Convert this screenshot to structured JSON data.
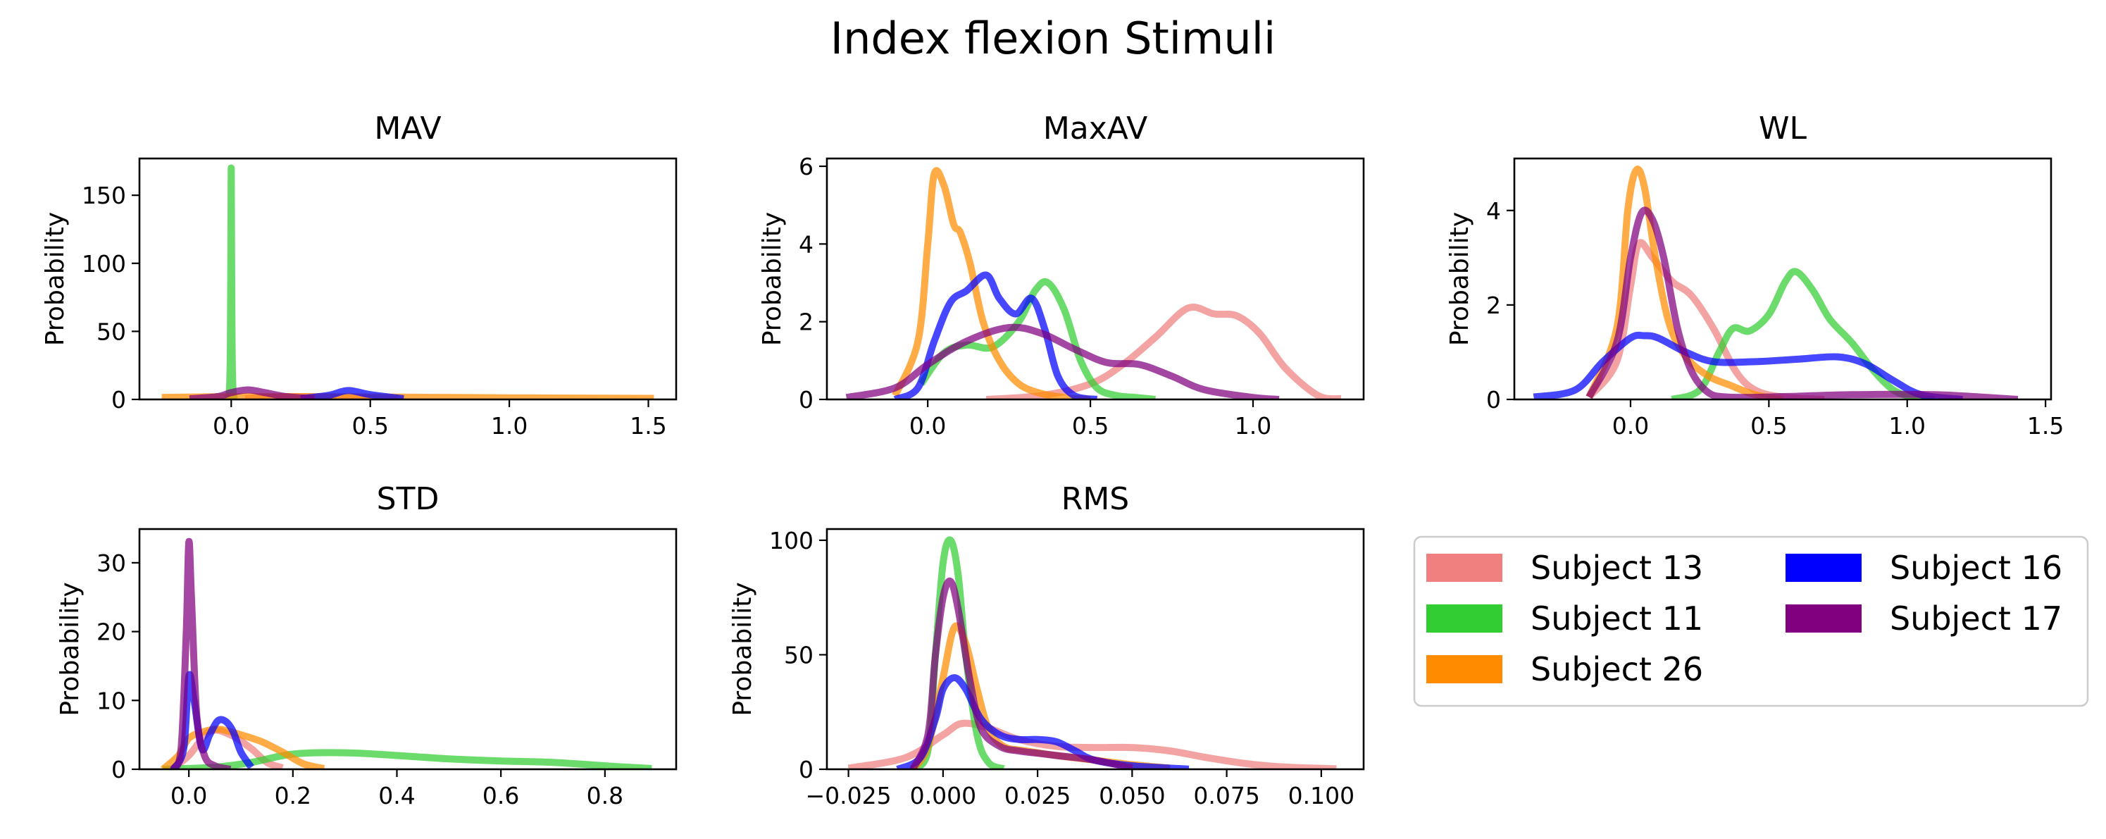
{
  "figure_title": "Index flexion Stimuli",
  "colors": {
    "Subject 13": "#f08080",
    "Subject 11": "#32cd32",
    "Subject 26": "#ff8c00",
    "Subject 16": "#0000ff",
    "Subject 17": "#800080"
  },
  "legend": {
    "entries": [
      "Subject 13",
      "Subject 11",
      "Subject 26",
      "Subject 16",
      "Subject 17"
    ],
    "columns": 2,
    "placement": "lower-right (empty 6th panel)"
  },
  "chart_data": [
    {
      "type": "line",
      "title": "MAV",
      "ylabel": "Probability",
      "xlabel": "",
      "xlim": [
        -0.33,
        1.6
      ],
      "ylim": [
        0,
        177
      ],
      "xticks": [
        0.0,
        0.5,
        1.0,
        1.5
      ],
      "xtick_labels": [
        "0.0",
        "0.5",
        "1.0",
        "1.5"
      ],
      "yticks": [
        0,
        50,
        100,
        150
      ],
      "ytick_labels": [
        "0",
        "50",
        "100",
        "150"
      ],
      "series": [
        {
          "name": "Subject 13",
          "x": [
            0.05,
            0.2,
            0.4,
            0.6
          ],
          "y": [
            0.5,
            2.0,
            1.5,
            0.5
          ]
        },
        {
          "name": "Subject 11",
          "x": [
            -0.02,
            -0.01,
            -0.006,
            -0.003,
            -0.001,
            0,
            0.001,
            0.003,
            0.006,
            0.01,
            0.02
          ],
          "y": [
            0,
            1,
            8,
            40,
            120,
            170,
            120,
            40,
            8,
            1,
            0
          ]
        },
        {
          "name": "Subject 26",
          "x": [
            -0.25,
            0,
            0.25,
            0.5,
            0.75,
            1.0,
            1.25,
            1.52
          ],
          "y": [
            1.5,
            2.0,
            2.0,
            1.8,
            1.5,
            1.2,
            1.0,
            0.8
          ]
        },
        {
          "name": "Subject 16",
          "x": [
            0.25,
            0.35,
            0.42,
            0.5,
            0.62
          ],
          "y": [
            0.5,
            3.0,
            6.5,
            3.5,
            0.5
          ]
        },
        {
          "name": "Subject 17",
          "x": [
            -0.15,
            -0.05,
            0.0,
            0.06,
            0.12,
            0.2,
            0.3
          ],
          "y": [
            0.5,
            2.0,
            5.0,
            7.0,
            5.0,
            2.0,
            0.5
          ]
        }
      ]
    },
    {
      "type": "line",
      "title": "MaxAV",
      "ylabel": "Probability",
      "xlabel": "",
      "xlim": [
        -0.31,
        1.34
      ],
      "ylim": [
        0,
        6.2
      ],
      "xticks": [
        0.0,
        0.5,
        1.0
      ],
      "xtick_labels": [
        "0.0",
        "0.5",
        "1.0"
      ],
      "yticks": [
        0,
        2,
        4,
        6
      ],
      "ytick_labels": [
        "0",
        "2",
        "4",
        "6"
      ],
      "series": [
        {
          "name": "Subject 13",
          "x": [
            0.18,
            0.35,
            0.5,
            0.6,
            0.7,
            0.8,
            0.88,
            0.95,
            1.02,
            1.1,
            1.2,
            1.27
          ],
          "y": [
            0.0,
            0.1,
            0.4,
            0.9,
            1.6,
            2.35,
            2.2,
            2.15,
            1.7,
            0.8,
            0.1,
            0.02
          ]
        },
        {
          "name": "Subject 11",
          "x": [
            -0.02,
            0.05,
            0.12,
            0.2,
            0.28,
            0.33,
            0.37,
            0.42,
            0.47,
            0.52,
            0.58,
            0.64,
            0.7
          ],
          "y": [
            0.4,
            1.2,
            1.4,
            1.35,
            2.0,
            2.8,
            3.0,
            2.3,
            1.0,
            0.3,
            0.1,
            0.05,
            0.0
          ]
        },
        {
          "name": "Subject 26",
          "x": [
            -0.1,
            -0.03,
            0.0,
            0.02,
            0.05,
            0.08,
            0.1,
            0.13,
            0.17,
            0.22,
            0.28,
            0.35,
            0.42,
            0.5
          ],
          "y": [
            0.1,
            1.5,
            4.0,
            5.8,
            5.5,
            4.5,
            4.3,
            3.5,
            2.0,
            1.0,
            0.4,
            0.15,
            0.05,
            0.0
          ]
        },
        {
          "name": "Subject 16",
          "x": [
            -0.1,
            -0.03,
            0.02,
            0.07,
            0.12,
            0.18,
            0.22,
            0.27,
            0.32,
            0.36,
            0.4,
            0.45,
            0.52
          ],
          "y": [
            0.0,
            0.3,
            1.5,
            2.5,
            2.8,
            3.2,
            2.6,
            2.2,
            2.6,
            1.8,
            0.6,
            0.1,
            0.0
          ]
        },
        {
          "name": "Subject 17",
          "x": [
            -0.25,
            -0.1,
            0.0,
            0.12,
            0.25,
            0.35,
            0.45,
            0.55,
            0.65,
            0.75,
            0.85,
            1.0,
            1.08
          ],
          "y": [
            0.05,
            0.3,
            0.9,
            1.5,
            1.85,
            1.7,
            1.3,
            0.95,
            0.9,
            0.6,
            0.25,
            0.05,
            0.0
          ]
        }
      ]
    },
    {
      "type": "line",
      "title": "WL",
      "ylabel": "Probability",
      "xlabel": "",
      "xlim": [
        -0.42,
        1.52
      ],
      "ylim": [
        0,
        5.1
      ],
      "xticks": [
        0.0,
        0.5,
        1.0,
        1.5
      ],
      "xtick_labels": [
        "0.0",
        "0.5",
        "1.0",
        "1.5"
      ],
      "yticks": [
        0,
        2,
        4
      ],
      "ytick_labels": [
        "0",
        "2",
        "4"
      ],
      "series": [
        {
          "name": "Subject 13",
          "x": [
            -0.15,
            -0.05,
            0.0,
            0.03,
            0.08,
            0.15,
            0.22,
            0.3,
            0.38,
            0.45,
            0.55,
            0.7
          ],
          "y": [
            0.05,
            0.8,
            2.4,
            3.3,
            3.0,
            2.5,
            2.2,
            1.5,
            0.6,
            0.2,
            0.05,
            0.0
          ]
        },
        {
          "name": "Subject 11",
          "x": [
            0.15,
            0.25,
            0.32,
            0.37,
            0.43,
            0.5,
            0.56,
            0.6,
            0.66,
            0.72,
            0.8,
            0.88,
            0.95,
            1.02,
            1.1
          ],
          "y": [
            0.0,
            0.2,
            1.0,
            1.5,
            1.45,
            1.8,
            2.5,
            2.7,
            2.3,
            1.7,
            1.2,
            0.6,
            0.2,
            0.05,
            0.0
          ]
        },
        {
          "name": "Subject 26",
          "x": [
            -0.15,
            -0.05,
            -0.01,
            0.02,
            0.05,
            0.09,
            0.14,
            0.2,
            0.28,
            0.36,
            0.45,
            0.55
          ],
          "y": [
            0.05,
            1.5,
            4.0,
            4.85,
            4.5,
            3.0,
            1.6,
            0.9,
            0.5,
            0.3,
            0.1,
            0.0
          ]
        },
        {
          "name": "Subject 16",
          "x": [
            -0.35,
            -0.2,
            -0.1,
            0.0,
            0.05,
            0.1,
            0.2,
            0.3,
            0.45,
            0.6,
            0.75,
            0.85,
            0.95,
            1.05,
            1.2
          ],
          "y": [
            0.05,
            0.2,
            0.8,
            1.3,
            1.35,
            1.3,
            1.0,
            0.8,
            0.8,
            0.85,
            0.9,
            0.75,
            0.4,
            0.1,
            0.0
          ]
        },
        {
          "name": "Subject 17",
          "x": [
            -0.15,
            -0.05,
            0.0,
            0.04,
            0.08,
            0.12,
            0.17,
            0.22,
            0.28,
            0.35,
            0.5,
            0.8,
            1.1,
            1.4
          ],
          "y": [
            0.05,
            1.2,
            3.0,
            3.95,
            3.8,
            3.0,
            1.5,
            0.6,
            0.15,
            0.05,
            0.05,
            0.1,
            0.1,
            0.0
          ]
        }
      ]
    },
    {
      "type": "line",
      "title": "STD",
      "ylabel": "Probability",
      "xlabel": "",
      "xlim": [
        -0.095,
        0.937
      ],
      "ylim": [
        0,
        34.9
      ],
      "xticks": [
        0.0,
        0.2,
        0.4,
        0.6,
        0.8
      ],
      "xtick_labels": [
        "0.0",
        "0.2",
        "0.4",
        "0.6",
        "0.8"
      ],
      "yticks": [
        0,
        10,
        20,
        30
      ],
      "ytick_labels": [
        "0",
        "10",
        "20",
        "30"
      ],
      "series": [
        {
          "name": "Subject 13",
          "x": [
            -0.03,
            0.0,
            0.04,
            0.08,
            0.12,
            0.15,
            0.18
          ],
          "y": [
            0.2,
            2.0,
            5.5,
            5.0,
            3.0,
            1.0,
            0.2
          ]
        },
        {
          "name": "Subject 11",
          "x": [
            -0.05,
            0.05,
            0.12,
            0.2,
            0.3,
            0.4,
            0.5,
            0.6,
            0.7,
            0.8,
            0.89
          ],
          "y": [
            0.0,
            0.3,
            1.0,
            2.2,
            2.4,
            2.0,
            1.5,
            1.2,
            1.0,
            0.5,
            0.1
          ]
        },
        {
          "name": "Subject 26",
          "x": [
            -0.05,
            -0.02,
            0.0,
            0.03,
            0.06,
            0.1,
            0.14,
            0.18,
            0.22,
            0.26
          ],
          "y": [
            0.0,
            2.0,
            4.5,
            5.5,
            5.8,
            5.0,
            4.0,
            2.5,
            0.8,
            0.1
          ]
        },
        {
          "name": "Subject 16",
          "x": [
            -0.03,
            -0.01,
            0.0,
            0.01,
            0.025,
            0.04,
            0.055,
            0.07,
            0.085,
            0.1,
            0.12
          ],
          "y": [
            0.0,
            3.0,
            13.5,
            10.0,
            3.0,
            5.0,
            7.0,
            7.0,
            5.5,
            2.5,
            0.3
          ]
        },
        {
          "name": "Subject 17",
          "x": [
            -0.03,
            -0.015,
            -0.005,
            0.0,
            0.005,
            0.015,
            0.03,
            0.05,
            0.08
          ],
          "y": [
            0.0,
            3.0,
            20.0,
            33.0,
            25.0,
            8.0,
            2.0,
            0.5,
            0.0
          ]
        }
      ]
    },
    {
      "type": "line",
      "title": "RMS",
      "ylabel": "Probability",
      "xlabel": "",
      "xlim": [
        -0.0307,
        0.1112
      ],
      "ylim": [
        0,
        104.9
      ],
      "xticks": [
        -0.025,
        0.0,
        0.025,
        0.05,
        0.075,
        0.1
      ],
      "xtick_labels": [
        "−0.025",
        "0.000",
        "0.025",
        "0.050",
        "0.075",
        "0.100"
      ],
      "yticks": [
        0,
        50,
        100
      ],
      "ytick_labels": [
        "0",
        "50",
        "100"
      ],
      "series": [
        {
          "name": "Subject 13",
          "x": [
            -0.025,
            -0.01,
            0.0,
            0.005,
            0.012,
            0.02,
            0.03,
            0.04,
            0.05,
            0.06,
            0.07,
            0.08,
            0.09,
            0.104
          ],
          "y": [
            0.5,
            5.0,
            15.0,
            20.0,
            18.0,
            13.0,
            10.0,
            9.5,
            9.5,
            8.0,
            5.0,
            2.5,
            1.0,
            0.2
          ]
        },
        {
          "name": "Subject 11",
          "x": [
            -0.008,
            -0.004,
            -0.002,
            0.0,
            0.002,
            0.004,
            0.006,
            0.009,
            0.012,
            0.016
          ],
          "y": [
            0.0,
            8.0,
            50.0,
            90.0,
            100.0,
            85.0,
            50.0,
            15.0,
            3.0,
            0.2
          ]
        },
        {
          "name": "Subject 26",
          "x": [
            -0.008,
            -0.004,
            0.0,
            0.003,
            0.006,
            0.009,
            0.012,
            0.016,
            0.022,
            0.03,
            0.04,
            0.05,
            0.06
          ],
          "y": [
            0.0,
            10.0,
            40.0,
            62.0,
            55.0,
            35.0,
            18.0,
            10.0,
            8.0,
            6.0,
            4.0,
            2.0,
            0.5
          ]
        },
        {
          "name": "Subject 16",
          "x": [
            -0.012,
            -0.006,
            -0.002,
            0.0,
            0.003,
            0.006,
            0.01,
            0.015,
            0.02,
            0.025,
            0.03,
            0.035,
            0.04,
            0.05,
            0.065
          ],
          "y": [
            0.0,
            5.0,
            22.0,
            35.0,
            40.0,
            35.0,
            22.0,
            15.0,
            13.0,
            13.0,
            12.0,
            8.0,
            4.0,
            1.5,
            0.1
          ]
        },
        {
          "name": "Subject 17",
          "x": [
            -0.008,
            -0.004,
            -0.002,
            0.0,
            0.002,
            0.004,
            0.007,
            0.01,
            0.015,
            0.02,
            0.025,
            0.03,
            0.04,
            0.05
          ],
          "y": [
            0.0,
            15.0,
            50.0,
            75.0,
            82.0,
            70.0,
            40.0,
            18.0,
            10.0,
            8.0,
            7.0,
            6.0,
            4.0,
            0.5
          ]
        }
      ]
    }
  ]
}
